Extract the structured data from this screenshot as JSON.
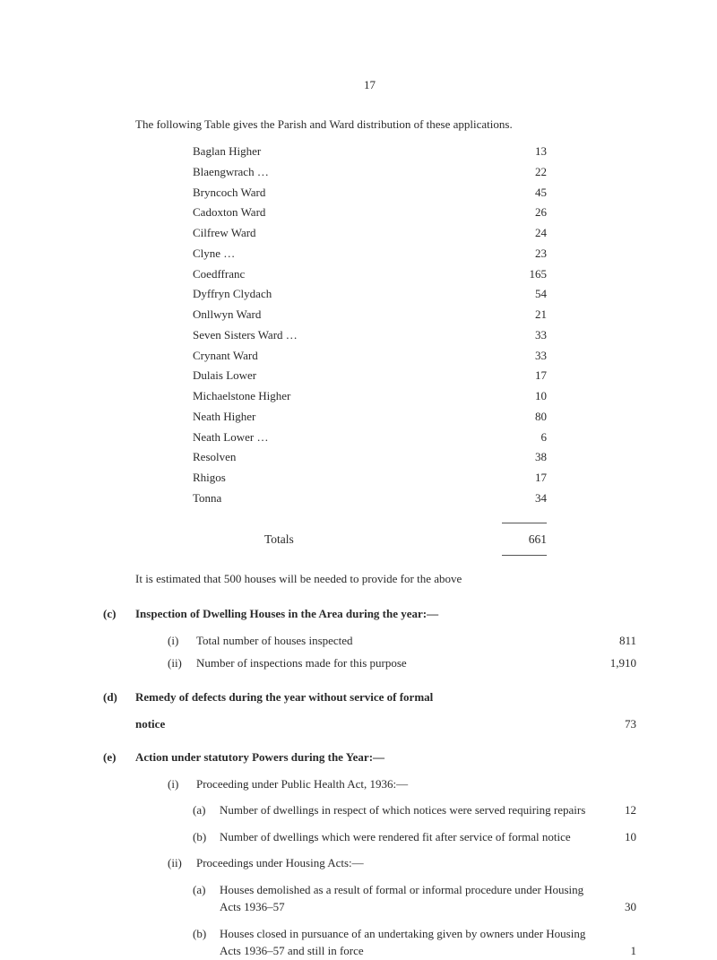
{
  "page_number": "17",
  "intro": "The following Table gives the Parish and Ward distribution of these applications.",
  "parish_table": [
    {
      "label": "Baglan Higher",
      "value": "13"
    },
    {
      "label": "Blaengwrach …",
      "value": "22"
    },
    {
      "label": "Bryncoch Ward",
      "value": "45"
    },
    {
      "label": "Cadoxton Ward",
      "value": "26"
    },
    {
      "label": "Cilfrew Ward",
      "value": "24"
    },
    {
      "label": "Clyne …",
      "value": "23"
    },
    {
      "label": "Coedffranc",
      "value": "165"
    },
    {
      "label": "Dyffryn Clydach",
      "value": "54"
    },
    {
      "label": "Onllwyn Ward",
      "value": "21"
    },
    {
      "label": "Seven Sisters Ward …",
      "value": "33"
    },
    {
      "label": "Crynant Ward",
      "value": "33"
    },
    {
      "label": "Dulais Lower",
      "value": "17"
    },
    {
      "label": "Michaelstone Higher",
      "value": "10"
    },
    {
      "label": "Neath Higher",
      "value": "80"
    },
    {
      "label": "Neath Lower …",
      "value": "6"
    },
    {
      "label": "Resolven",
      "value": "38"
    },
    {
      "label": "Rhigos",
      "value": "17"
    },
    {
      "label": "Tonna",
      "value": "34"
    }
  ],
  "totals": {
    "label": "Totals",
    "value": "661"
  },
  "estimate": "It is estimated that 500 houses will be needed to provide for the above",
  "section_c": {
    "letter": "(c)",
    "title": "Inspection of Dwelling Houses in the Area during the year:—",
    "items": [
      {
        "numeral": "(i)",
        "text": "Total number of houses inspected",
        "value": "811"
      },
      {
        "numeral": "(ii)",
        "text": "Number of inspections made for this purpose",
        "value": "1,910"
      }
    ]
  },
  "section_d": {
    "letter": "(d)",
    "title": "Remedy of defects during the year without service of formal",
    "notice_label": "notice",
    "value": "73"
  },
  "section_e": {
    "letter": "(e)",
    "title": "Action under statutory Powers during the Year:—",
    "sub_i": {
      "numeral": "(i)",
      "text": "Proceeding under Public Health Act, 1936:—",
      "items": [
        {
          "letter": "(a)",
          "text": "Number of dwellings in respect of which notices were served requiring repairs",
          "value": "12"
        },
        {
          "letter": "(b)",
          "text": "Number of dwellings which were rendered fit after service of formal notice",
          "value": "10"
        }
      ]
    },
    "sub_ii": {
      "numeral": "(ii)",
      "text": "Proceedings under Housing Acts:—",
      "items": [
        {
          "letter": "(a)",
          "text": "Houses demolished as a result of formal or informal procedure under Housing Acts 1936–57",
          "value": "30"
        },
        {
          "letter": "(b)",
          "text": "Houses closed in pursuance of an undertaking given by owners under Housing Acts 1936–57 and still in force",
          "value": "1"
        }
      ]
    }
  }
}
